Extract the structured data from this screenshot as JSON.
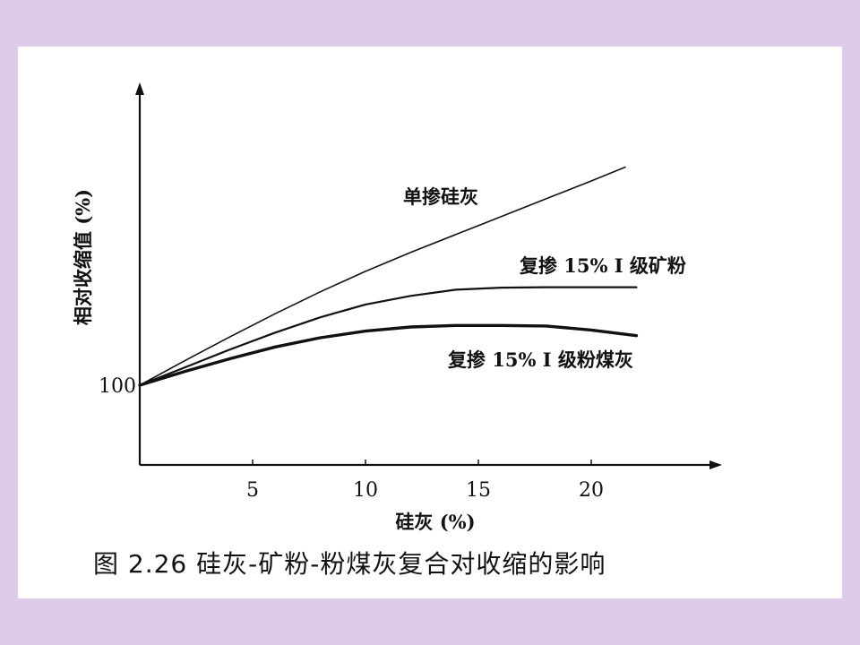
{
  "caption": "图 2.26   硅灰-矿粉-粉煤灰复合对收缩的影响",
  "chart_data": {
    "type": "line",
    "xlabel": "硅灰 (%)",
    "ylabel": "相对收缩值 (%)",
    "xticks": [
      5,
      10,
      15,
      20
    ],
    "yticks": [
      100
    ],
    "xlim": [
      0,
      25
    ],
    "series": [
      {
        "name": "单掺硅灰",
        "x": [
          0,
          2,
          4,
          6,
          8,
          10,
          12,
          14,
          16,
          18,
          20,
          21.5
        ],
        "y": [
          100,
          104.8,
          109.5,
          114,
          118.3,
          122.3,
          126,
          129.5,
          133,
          136.5,
          140,
          142.7
        ]
      },
      {
        "name": "复掺 15% I 级矿粉",
        "x": [
          0,
          2,
          4,
          6,
          8,
          10,
          12,
          14,
          16,
          18,
          20,
          22
        ],
        "y": [
          100,
          103.5,
          107,
          110.3,
          113.3,
          115.8,
          117.5,
          118.7,
          119.1,
          119.2,
          119.2,
          119.2
        ]
      },
      {
        "name": "复掺 15% I 级粉煤灰",
        "x": [
          0,
          2,
          4,
          6,
          8,
          10,
          12,
          14,
          16,
          18,
          20,
          22
        ],
        "y": [
          100,
          102.7,
          105.2,
          107.5,
          109.3,
          110.6,
          111.4,
          111.7,
          111.7,
          111.6,
          110.8,
          109.7
        ]
      }
    ]
  }
}
